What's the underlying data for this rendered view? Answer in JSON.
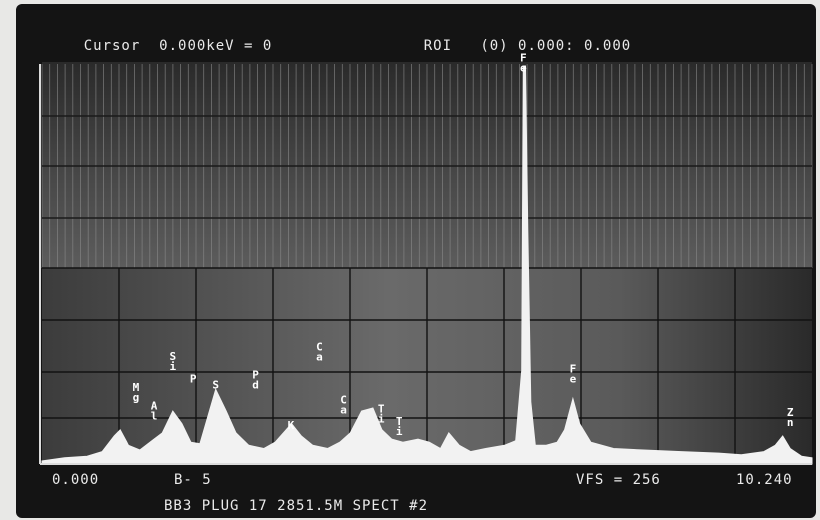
{
  "header": {
    "cursor_label": "Cursor",
    "cursor_value": "0.000keV = 0",
    "roi_label": "ROI",
    "roi_value": "(0) 0.000: 0.000"
  },
  "footer": {
    "x_start": "0.000",
    "b_label": "B- 5",
    "vfs_label": "VFS = 256",
    "x_end": "10.240",
    "caption": "BB3 PLUG 17 2851.5M SPECT #2"
  },
  "colors": {
    "screen_bg": "#141414",
    "text": "#eaeaea",
    "trace": "#f2f2f2",
    "grid_upper": "#8a8a8a",
    "grid_lower": "#121212"
  },
  "chart_data": {
    "type": "line",
    "xlabel": "",
    "ylabel": "",
    "xlim": [
      0,
      10.24
    ],
    "ylim": [
      0,
      256
    ],
    "grid": true,
    "spectrum": [
      [
        0.0,
        2
      ],
      [
        0.3,
        4
      ],
      [
        0.6,
        5
      ],
      [
        0.8,
        8
      ],
      [
        0.96,
        18
      ],
      [
        1.04,
        22
      ],
      [
        1.15,
        12
      ],
      [
        1.3,
        9
      ],
      [
        1.49,
        16
      ],
      [
        1.6,
        20
      ],
      [
        1.74,
        34
      ],
      [
        1.86,
        26
      ],
      [
        1.98,
        14
      ],
      [
        2.1,
        13
      ],
      [
        2.31,
        48
      ],
      [
        2.45,
        34
      ],
      [
        2.58,
        20
      ],
      [
        2.75,
        12
      ],
      [
        2.95,
        10
      ],
      [
        3.1,
        14
      ],
      [
        3.32,
        26
      ],
      [
        3.45,
        18
      ],
      [
        3.6,
        12
      ],
      [
        3.8,
        10
      ],
      [
        3.96,
        14
      ],
      [
        4.1,
        20
      ],
      [
        4.25,
        34
      ],
      [
        4.4,
        36
      ],
      [
        4.52,
        22
      ],
      [
        4.65,
        16
      ],
      [
        4.8,
        14
      ],
      [
        5.0,
        16
      ],
      [
        5.15,
        14
      ],
      [
        5.3,
        10
      ],
      [
        5.41,
        20
      ],
      [
        5.55,
        12
      ],
      [
        5.7,
        8
      ],
      [
        5.9,
        10
      ],
      [
        6.15,
        12
      ],
      [
        6.3,
        15
      ],
      [
        6.38,
        60
      ],
      [
        6.4,
        256
      ],
      [
        6.43,
        256
      ],
      [
        6.46,
        150
      ],
      [
        6.5,
        40
      ],
      [
        6.56,
        12
      ],
      [
        6.7,
        12
      ],
      [
        6.85,
        14
      ],
      [
        6.95,
        22
      ],
      [
        7.06,
        42
      ],
      [
        7.15,
        26
      ],
      [
        7.3,
        14
      ],
      [
        7.6,
        10
      ],
      [
        8.0,
        9
      ],
      [
        8.5,
        8
      ],
      [
        9.0,
        7
      ],
      [
        9.3,
        6
      ],
      [
        9.6,
        8
      ],
      [
        9.75,
        12
      ],
      [
        9.85,
        18
      ],
      [
        9.95,
        10
      ],
      [
        10.1,
        5
      ],
      [
        10.24,
        4
      ]
    ],
    "peaks": [
      {
        "label": "Mg",
        "x": 1.25,
        "y": 38
      },
      {
        "label": "Al",
        "x": 1.49,
        "y": 26
      },
      {
        "label": "Si",
        "x": 1.74,
        "y": 58
      },
      {
        "label": "P",
        "x": 2.01,
        "y": 50
      },
      {
        "label": "S",
        "x": 2.31,
        "y": 46
      },
      {
        "label": "Pd",
        "x": 2.84,
        "y": 46
      },
      {
        "label": "K",
        "x": 3.31,
        "y": 20
      },
      {
        "label": "Ca",
        "x": 3.69,
        "y": 64
      },
      {
        "label": "Ca",
        "x": 4.01,
        "y": 30
      },
      {
        "label": "Ti",
        "x": 4.51,
        "y": 24
      },
      {
        "label": "Ti",
        "x": 4.75,
        "y": 16
      },
      {
        "label": "Fe",
        "x": 6.4,
        "y": 250
      },
      {
        "label": "Fe",
        "x": 7.06,
        "y": 50
      },
      {
        "label": "Zn",
        "x": 9.95,
        "y": 22
      }
    ]
  }
}
